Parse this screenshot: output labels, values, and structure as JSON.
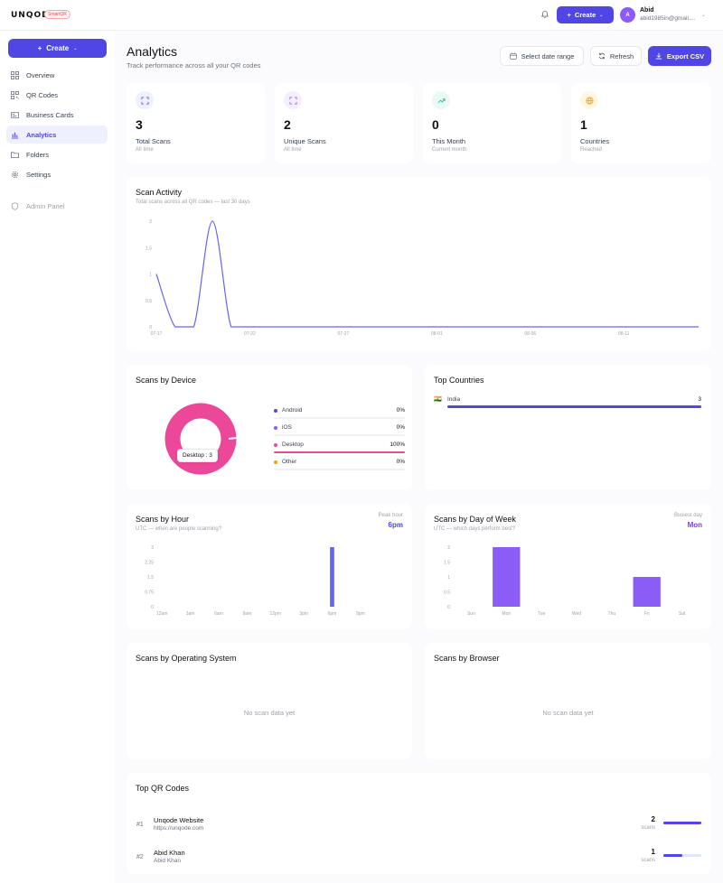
{
  "header": {
    "logo": "UNQODE",
    "logo_badge": "SmartQR",
    "create_label": "Create",
    "user_initial": "A",
    "user_name": "Abid",
    "user_email": "abid1985in@gmail...."
  },
  "sidebar": {
    "create_label": "Create",
    "items": [
      {
        "label": "Overview",
        "icon": "grid-icon"
      },
      {
        "label": "QR Codes",
        "icon": "qr-icon"
      },
      {
        "label": "Business Cards",
        "icon": "card-icon"
      },
      {
        "label": "Analytics",
        "icon": "bar-chart-icon",
        "active": true
      },
      {
        "label": "Folders",
        "icon": "folder-icon"
      },
      {
        "label": "Settings",
        "icon": "gear-icon"
      },
      {
        "label": "Admin Panel",
        "icon": "shield-icon"
      }
    ]
  },
  "page": {
    "title": "Analytics",
    "subtitle": "Track performance across all your QR codes",
    "date_range_label": "Select date range",
    "refresh_label": "Refresh",
    "export_label": "Export CSV"
  },
  "stats": [
    {
      "value": "3",
      "label": "Total Scans",
      "sub": "All time",
      "icon": "scan-icon",
      "color": "#4f46e5"
    },
    {
      "value": "2",
      "label": "Unique Scans",
      "sub": "All time",
      "icon": "scan-icon",
      "color": "#8b5cf6"
    },
    {
      "value": "0",
      "label": "This Month",
      "sub": "Current month",
      "icon": "trend-up-icon",
      "color": "#10b981"
    },
    {
      "value": "1",
      "label": "Countries",
      "sub": "Reached",
      "icon": "globe-icon",
      "color": "#f59e0b"
    }
  ],
  "scan_activity": {
    "title": "Scan Activity",
    "subtitle": "Total scans across all QR codes — last 30 days",
    "chart_data": {
      "type": "line",
      "x": [
        "07-17",
        "07-18",
        "07-19",
        "07-20",
        "07-21",
        "07-22",
        "07-23",
        "07-24",
        "07-25",
        "07-26",
        "07-27",
        "07-28",
        "07-29",
        "07-30",
        "07-31",
        "08-01",
        "08-02",
        "08-03",
        "08-04",
        "08-05",
        "08-06",
        "08-07",
        "08-08",
        "08-09",
        "08-10",
        "08-11",
        "08-12",
        "08-13",
        "08-14",
        "08-15"
      ],
      "values": [
        1,
        0,
        0,
        2,
        0,
        0,
        0,
        0,
        0,
        0,
        0,
        0,
        0,
        0,
        0,
        0,
        0,
        0,
        0,
        0,
        0,
        0,
        0,
        0,
        0,
        0,
        0,
        0,
        0,
        0
      ],
      "x_ticks": [
        "07-17",
        "07-22",
        "07-27",
        "08-01",
        "08-06",
        "08-11"
      ],
      "y_ticks": [
        "0",
        "0.5",
        "1",
        "1.5",
        "2"
      ],
      "ylim": [
        0,
        2
      ],
      "color": "#6366f1"
    }
  },
  "device": {
    "title": "Scans by Device",
    "tooltip": "Desktop : 3",
    "chart_data": {
      "type": "pie",
      "categories": [
        "Android",
        "iOS",
        "Desktop",
        "Other"
      ],
      "values": [
        0,
        0,
        100,
        0
      ],
      "labels": [
        "0%",
        "0%",
        "100%",
        "0%"
      ],
      "colors": [
        "#4f46e5",
        "#8b5cf6",
        "#ec4899",
        "#f59e0b"
      ]
    }
  },
  "countries": {
    "title": "Top Countries",
    "items": [
      {
        "flag": "🇮🇳",
        "name": "India",
        "count": "3",
        "fraction": 1.0
      }
    ]
  },
  "hour": {
    "title": "Scans by Hour",
    "subtitle": "UTC — when are people scanning?",
    "peak_label": "Peak hour",
    "peak_value": "6pm",
    "chart_data": {
      "type": "bar",
      "categories": [
        "12am",
        "1am",
        "2am",
        "3am",
        "4am",
        "5am",
        "6am",
        "7am",
        "8am",
        "9am",
        "10am",
        "11am",
        "12pm",
        "1pm",
        "2pm",
        "3pm",
        "4pm",
        "5pm",
        "6pm",
        "7pm",
        "8pm",
        "9pm",
        "10pm",
        "11pm"
      ],
      "values": [
        0,
        0,
        0,
        0,
        0,
        0,
        0,
        0,
        0,
        0,
        0,
        0,
        0,
        0,
        0,
        0,
        0,
        0,
        3,
        0,
        0,
        0,
        0,
        0
      ],
      "x_ticks": [
        "12am",
        "3am",
        "6am",
        "9am",
        "12pm",
        "3pm",
        "6pm",
        "9pm"
      ],
      "y_ticks": [
        "0",
        "0.75",
        "1.5",
        "2.25",
        "3"
      ],
      "ylim": [
        0,
        3
      ],
      "color": "#6366f1"
    }
  },
  "weekday": {
    "title": "Scans by Day of Week",
    "subtitle": "UTC — which days perform best?",
    "peak_label": "Busiest day",
    "peak_value": "Mon",
    "chart_data": {
      "type": "bar",
      "categories": [
        "Sun",
        "Mon",
        "Tue",
        "Wed",
        "Thu",
        "Fri",
        "Sat"
      ],
      "values": [
        0,
        2,
        0,
        0,
        0,
        1,
        0
      ],
      "y_ticks": [
        "0",
        "0.5",
        "1",
        "1.5",
        "2"
      ],
      "ylim": [
        0,
        2
      ],
      "color": "#8b5cf6"
    }
  },
  "os": {
    "title": "Scans by Operating System",
    "empty": "No scan data yet"
  },
  "browser": {
    "title": "Scans by Browser",
    "empty": "No scan data yet"
  },
  "top_qr": {
    "title": "Top QR Codes",
    "items": [
      {
        "rank": "#1",
        "name": "Unqode Website",
        "url": "https://unqode.com",
        "count": "2",
        "unit": "scans",
        "fraction": 1.0
      },
      {
        "rank": "#2",
        "name": "Abid Khan",
        "url": "Abid Khan",
        "count": "1",
        "unit": "scans",
        "fraction": 0.5
      }
    ]
  }
}
